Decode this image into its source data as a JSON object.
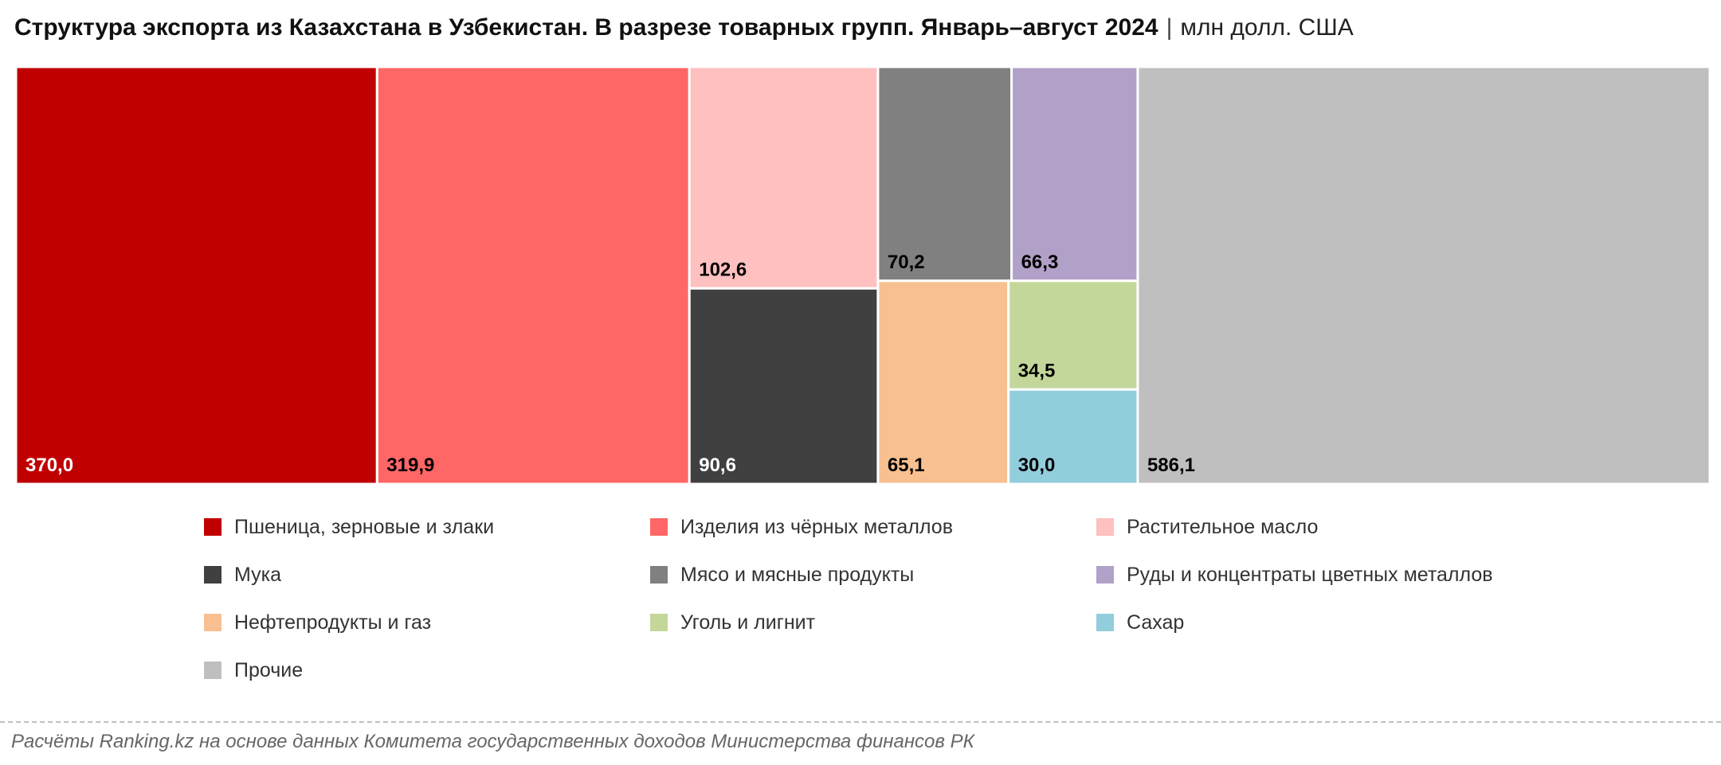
{
  "header": {
    "title": "Структура экспорта из Казахстана в Узбекистан. В разрезе товарных групп. Январь–август 2024",
    "separator": "|",
    "unit": "млн долл. США"
  },
  "footer": {
    "source": "Расчёты Ranking.kz на основе данных Комитета государственных доходов Министерства финансов РК"
  },
  "chart_data": {
    "type": "treemap",
    "title": "Структура экспорта из Казахстана в Узбекистан. В разрезе товарных групп. Январь–август 2024",
    "unit": "млн долл. США",
    "legend_position": "bottom",
    "series": [
      {
        "name": "Пшеница, зерновые и злаки",
        "value": 370.0,
        "label": "370,0",
        "color": "#c00000",
        "label_color": "#ffffff"
      },
      {
        "name": "Изделия из чёрных металлов",
        "value": 319.9,
        "label": "319,9",
        "color": "#ff6666",
        "label_color": "#000000"
      },
      {
        "name": "Растительное масло",
        "value": 102.6,
        "label": "102,6",
        "color": "#ffc0c0",
        "label_color": "#000000"
      },
      {
        "name": "Мука",
        "value": 90.6,
        "label": "90,6",
        "color": "#404040",
        "label_color": "#ffffff"
      },
      {
        "name": "Мясо и мясные продукты",
        "value": 70.2,
        "label": "70,2",
        "color": "#808080",
        "label_color": "#000000"
      },
      {
        "name": "Руды и концентраты цветных металлов",
        "value": 66.3,
        "label": "66,3",
        "color": "#b1a0c7",
        "label_color": "#000000"
      },
      {
        "name": "Нефтепродукты и газ",
        "value": 65.1,
        "label": "65,1",
        "color": "#f8c090",
        "label_color": "#000000"
      },
      {
        "name": "Уголь и лигнит",
        "value": 34.5,
        "label": "34,5",
        "color": "#c4d79b",
        "label_color": "#000000"
      },
      {
        "name": "Сахар",
        "value": 30.0,
        "label": "30,0",
        "color": "#92cddc",
        "label_color": "#000000"
      },
      {
        "name": "Прочие",
        "value": 586.1,
        "label": "586,1",
        "color": "#bfbfbf",
        "label_color": "#000000"
      }
    ]
  }
}
